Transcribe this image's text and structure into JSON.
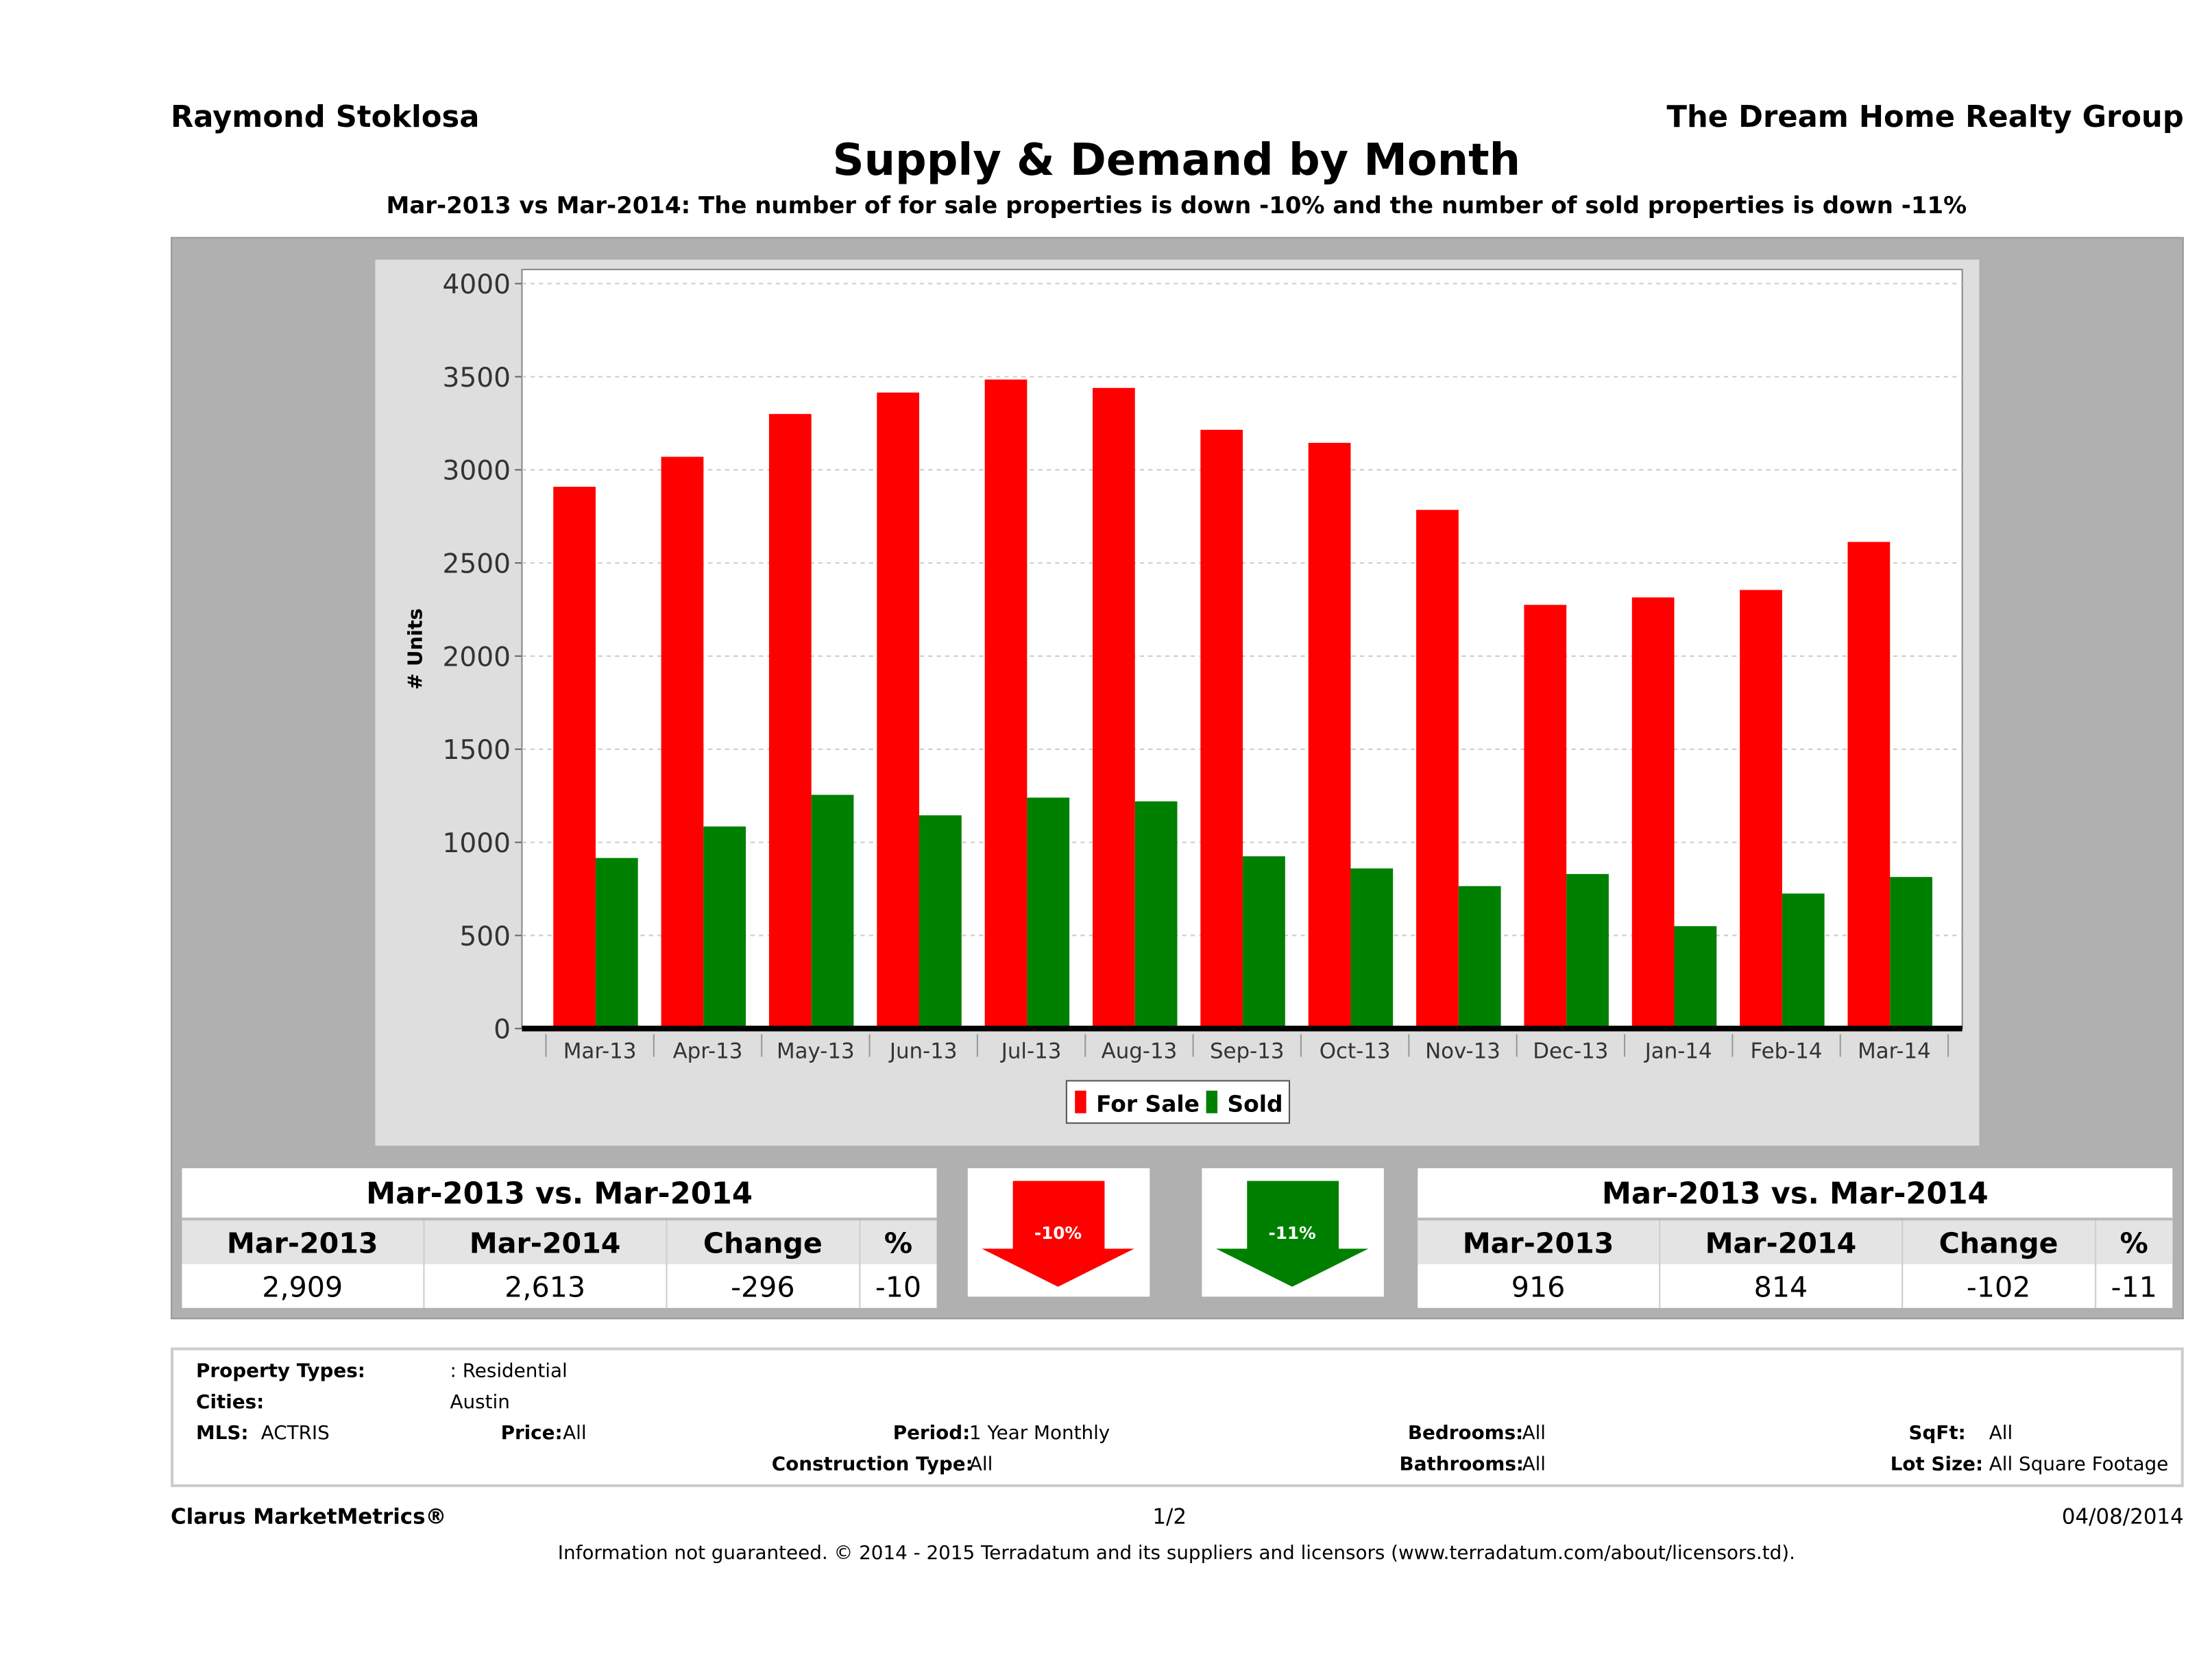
{
  "header": {
    "left": "Raymond Stoklosa",
    "right": "The Dream Home Realty Group",
    "title": "Supply & Demand by Month",
    "subtitle": "Mar-2013 vs Mar-2014: The number of for sale properties is down -10% and the number of sold properties is down -11%"
  },
  "chart_data": {
    "type": "bar",
    "ylabel": "# Units",
    "ylim": [
      0,
      4000
    ],
    "yticks": [
      0,
      500,
      1000,
      1500,
      2000,
      2500,
      3000,
      3500,
      4000
    ],
    "grid": true,
    "legend_placement": "bottom",
    "categories": [
      "Mar-13",
      "Apr-13",
      "May-13",
      "Jun-13",
      "Jul-13",
      "Aug-13",
      "Sep-13",
      "Oct-13",
      "Nov-13",
      "Dec-13",
      "Jan-14",
      "Feb-14",
      "Mar-14"
    ],
    "series": [
      {
        "name": "For Sale",
        "color": "#ff0000",
        "values": [
          2909,
          3070,
          3300,
          3415,
          3485,
          3440,
          3215,
          3145,
          2785,
          2275,
          2315,
          2355,
          2613
        ]
      },
      {
        "name": "Sold",
        "color": "#008000",
        "values": [
          916,
          1085,
          1255,
          1145,
          1240,
          1220,
          925,
          860,
          765,
          830,
          550,
          725,
          814
        ]
      }
    ]
  },
  "for_sale_table": {
    "title": "Mar-2013 vs. Mar-2014",
    "headers": [
      "Mar-2013",
      "Mar-2014",
      "Change",
      "%"
    ],
    "values": [
      "2,909",
      "2,613",
      "-296",
      "-10"
    ]
  },
  "sold_table": {
    "title": "Mar-2013 vs. Mar-2014",
    "headers": [
      "Mar-2013",
      "Mar-2014",
      "Change",
      "%"
    ],
    "values": [
      "916",
      "814",
      "-102",
      "-11"
    ]
  },
  "arrows": {
    "for_sale": {
      "label": "-10%",
      "color": "#ff0000",
      "direction": "down"
    },
    "sold": {
      "label": "-11%",
      "color": "#008000",
      "direction": "down"
    }
  },
  "info": {
    "property_types_label": "Property Types:",
    "property_types": ": Residential",
    "cities_label": "Cities:",
    "cities": "Austin",
    "mls_label": "MLS:",
    "mls": "ACTRIS",
    "price_label": "Price:",
    "price": "All",
    "period_label": "Period:",
    "period": "1 Year Monthly",
    "bedrooms_label": "Bedrooms:",
    "bedrooms": "All",
    "sqft_label": "SqFt:",
    "sqft": "All",
    "construction_label": "Construction Type:",
    "construction": "All",
    "bathrooms_label": "Bathrooms:",
    "bathrooms": "All",
    "lotsize_label": "Lot Size:",
    "lotsize": "All Square Footage"
  },
  "footer": {
    "brand": "Clarus MarketMetrics®",
    "page": "1/2",
    "date": "04/08/2014",
    "disclaimer": "Information not guaranteed. © 2014 - 2015 Terradatum and its suppliers and licensors (www.terradatum.com/about/licensors.td)."
  }
}
